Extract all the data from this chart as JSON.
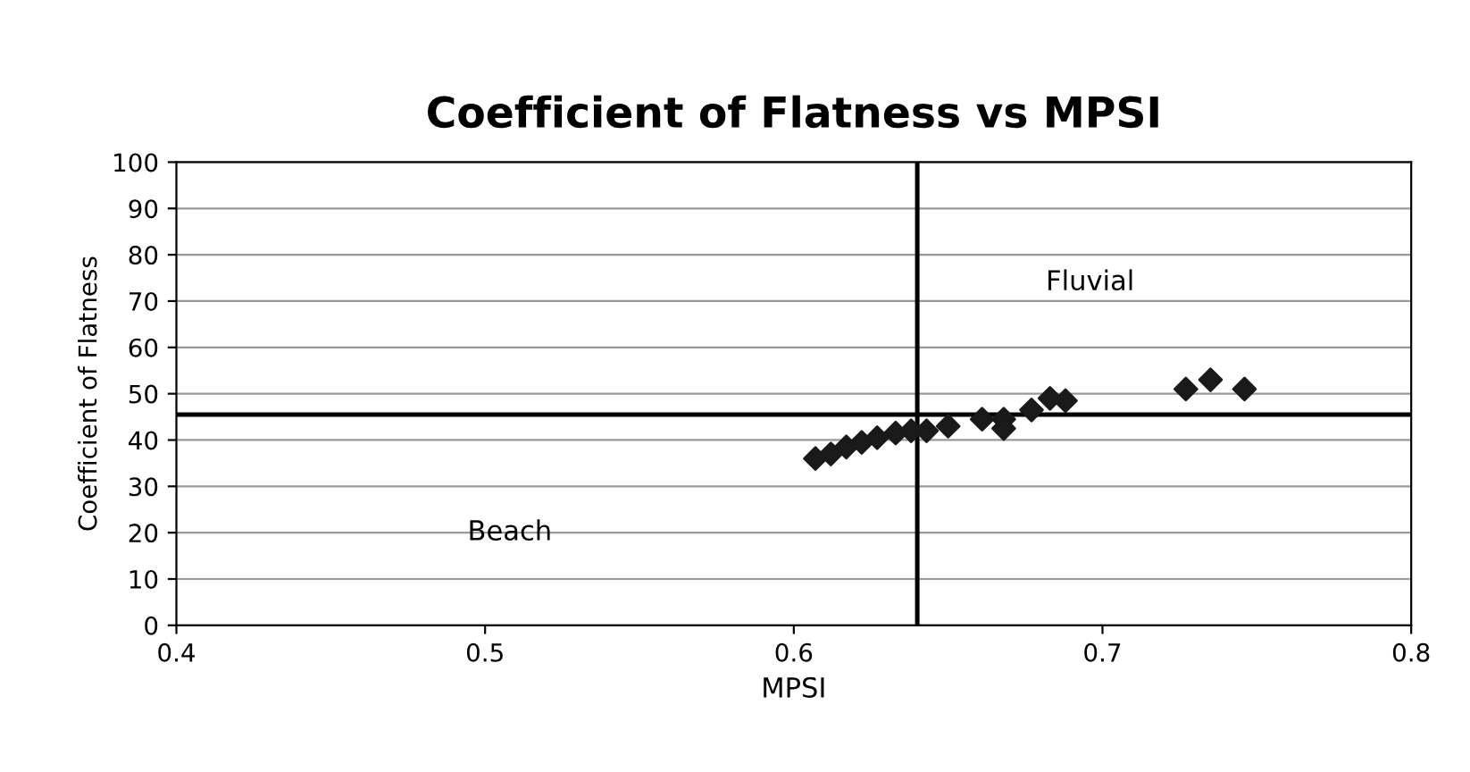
{
  "chart_data": {
    "type": "scatter",
    "title": "Coefficient of Flatness vs MPSI",
    "xlabel": "MPSI",
    "ylabel": "Coefficient of Flatness",
    "x": [
      0.607,
      0.612,
      0.617,
      0.622,
      0.627,
      0.633,
      0.638,
      0.643,
      0.65,
      0.661,
      0.668,
      0.668,
      0.677,
      0.683,
      0.688,
      0.727,
      0.735,
      0.746
    ],
    "values": [
      36,
      37,
      38.5,
      39.5,
      40.5,
      41.5,
      42,
      42,
      43,
      44.5,
      44.5,
      42.5,
      46.5,
      49,
      48.5,
      51,
      53,
      51
    ],
    "color": "#1a1a1a",
    "marker": "diamond",
    "xlim": [
      0.4,
      0.8
    ],
    "xticks": [
      0.4,
      0.5,
      0.6,
      0.7,
      0.8
    ],
    "ylim": [
      0,
      100
    ],
    "yticks": [
      0,
      10,
      20,
      30,
      40,
      50,
      60,
      70,
      80,
      90,
      100
    ],
    "grid": "y",
    "legend": false,
    "ref_lines": [
      {
        "axis": "x",
        "value": 0.64
      },
      {
        "axis": "y",
        "value": 45.5
      }
    ],
    "annotations": [
      "Fluvial",
      "Beach"
    ]
  }
}
